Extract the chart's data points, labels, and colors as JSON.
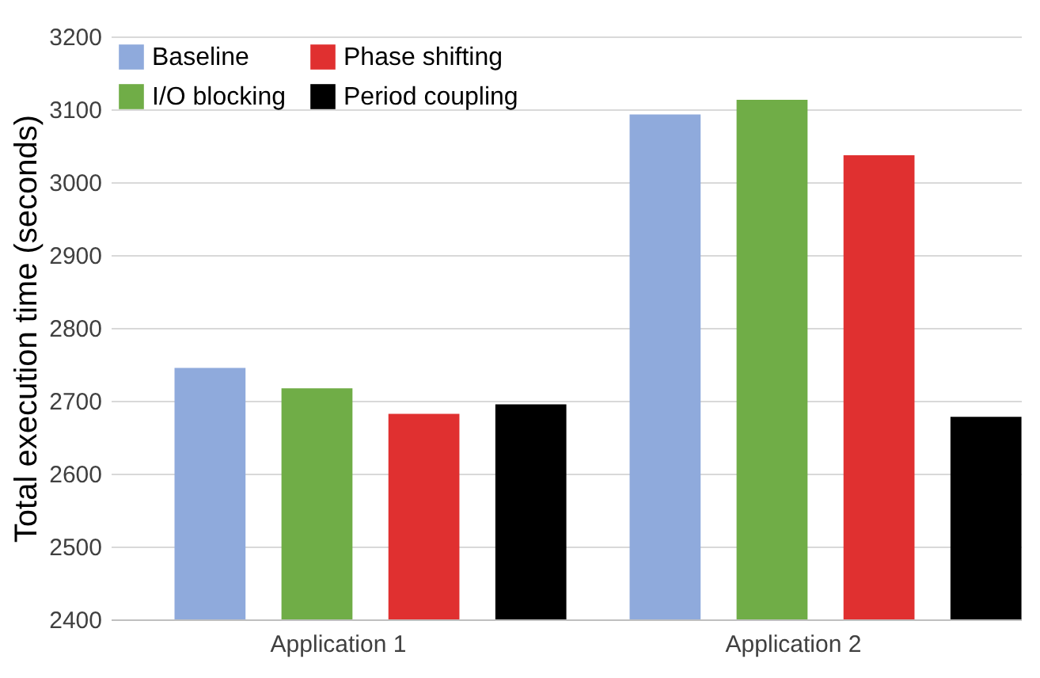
{
  "chart_data": {
    "type": "bar",
    "ylabel": "Total execution time (seconds)",
    "categories": [
      "Application 1",
      "Application 2"
    ],
    "series": [
      {
        "name": "Baseline",
        "color": "#8faadc",
        "values": [
          2745,
          3093
        ]
      },
      {
        "name": "I/O blocking",
        "color": "#70ad47",
        "values": [
          2717,
          3113
        ]
      },
      {
        "name": "Phase shifting",
        "color": "#e03030",
        "values": [
          2682,
          3037
        ]
      },
      {
        "name": "Period coupling",
        "color": "#000000",
        "values": [
          2695,
          2678
        ]
      }
    ],
    "ylim": [
      2400,
      3200
    ],
    "yticks": [
      2400,
      2500,
      2600,
      2700,
      2800,
      2900,
      3000,
      3100,
      3200
    ],
    "grid": "y",
    "legend": "top left"
  }
}
